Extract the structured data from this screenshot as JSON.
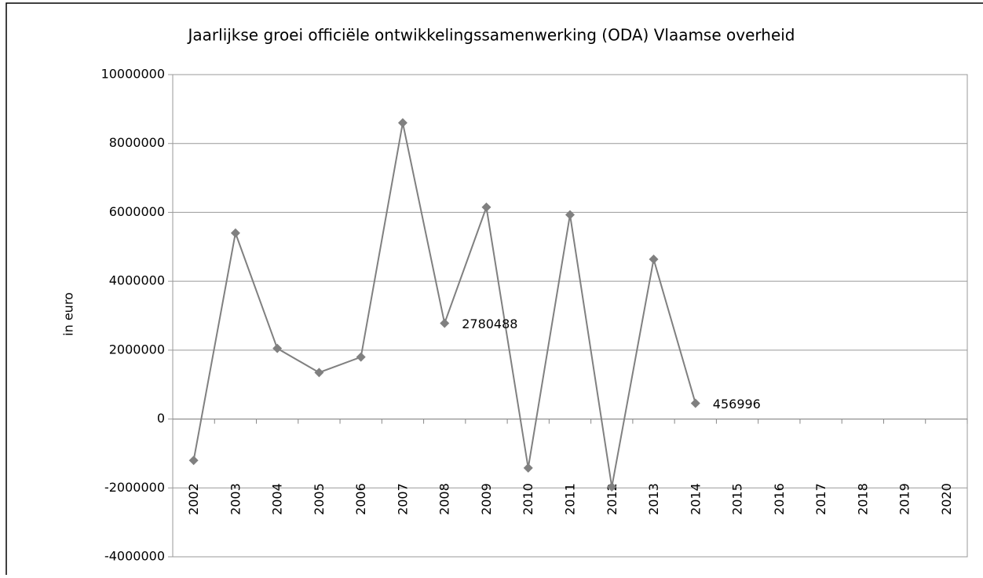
{
  "chart_data": {
    "type": "line",
    "title": "Jaarlijkse groei officiële ontwikkelingssamenwerking (ODA) Vlaamse overheid",
    "ylabel": "in euro",
    "categories": [
      "2002",
      "2003",
      "2004",
      "2005",
      "2006",
      "2007",
      "2008",
      "2009",
      "2010",
      "2011",
      "2012",
      "2013",
      "2014",
      "2015",
      "2016",
      "2017",
      "2018",
      "2019",
      "2020"
    ],
    "series": [
      {
        "name": "ODA",
        "color": "#808080",
        "values": [
          -1200000,
          5400000,
          2050000,
          1350000,
          1800000,
          8600000,
          2780488,
          6150000,
          -1420000,
          5930000,
          -1970000,
          4640000,
          456996,
          null,
          null,
          null,
          null,
          null,
          null
        ],
        "value_labels": [
          null,
          null,
          null,
          null,
          null,
          null,
          "2780488",
          null,
          null,
          null,
          null,
          null,
          "456996",
          null,
          null,
          null,
          null,
          null,
          null
        ]
      }
    ],
    "ylim": [
      -4000000,
      10000000
    ],
    "yticks": [
      -4000000,
      -2000000,
      0,
      2000000,
      4000000,
      6000000,
      8000000,
      10000000
    ],
    "grid": true
  }
}
